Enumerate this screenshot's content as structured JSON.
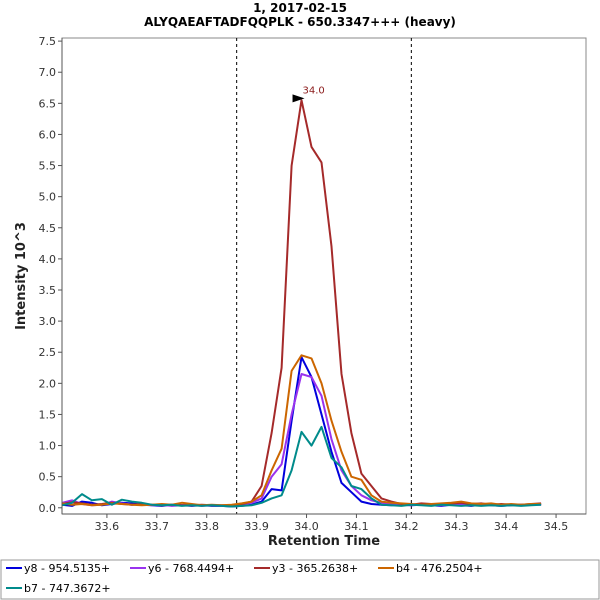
{
  "chart_data": {
    "type": "line",
    "title": "1, 2017-02-15",
    "subtitle": "ALYQAEAFTADFQQPLK - 650.3347+++ (heavy)",
    "xlabel": "Retention Time",
    "ylabel": "Intensity 10^3",
    "xlim": [
      33.51,
      34.56
    ],
    "ylim": [
      -0.1,
      7.55
    ],
    "x_ticks": [
      "33.6",
      "33.7",
      "33.8",
      "33.9",
      "34.0",
      "34.1",
      "34.2",
      "34.3",
      "34.4",
      "34.5"
    ],
    "y_ticks": [
      "0.0",
      "0.5",
      "1.0",
      "1.5",
      "2.0",
      "2.5",
      "3.0",
      "3.5",
      "4.0",
      "4.5",
      "5.0",
      "5.5",
      "6.0",
      "6.5",
      "7.0",
      "7.5"
    ],
    "integration_bounds": [
      33.86,
      34.21
    ],
    "peak_annotation": {
      "x": 34.0,
      "y": 6.58,
      "label": "34.0",
      "color": "#8b1a1a"
    },
    "legend_position": "bottom",
    "grid": false,
    "x": [
      33.51,
      33.53,
      33.55,
      33.57,
      33.59,
      33.61,
      33.63,
      33.65,
      33.67,
      33.69,
      33.71,
      33.73,
      33.75,
      33.77,
      33.79,
      33.81,
      33.83,
      33.85,
      33.87,
      33.89,
      33.91,
      33.93,
      33.95,
      33.97,
      33.99,
      34.01,
      34.03,
      34.05,
      34.07,
      34.09,
      34.11,
      34.13,
      34.15,
      34.17,
      34.19,
      34.21,
      34.23,
      34.25,
      34.27,
      34.29,
      34.31,
      34.33,
      34.35,
      34.37,
      34.39,
      34.41,
      34.43,
      34.45,
      34.47
    ],
    "series": [
      {
        "name": "y8 - 954.5135+",
        "color": "#0000dd",
        "values": [
          0.05,
          0.03,
          0.1,
          0.08,
          0.04,
          0.06,
          0.08,
          0.07,
          0.05,
          0.04,
          0.03,
          0.05,
          0.04,
          0.03,
          0.04,
          0.03,
          0.03,
          0.02,
          0.03,
          0.05,
          0.1,
          0.3,
          0.28,
          1.4,
          2.42,
          2.1,
          1.5,
          0.9,
          0.4,
          0.25,
          0.1,
          0.06,
          0.05,
          0.04,
          0.05,
          0.04,
          0.05,
          0.04,
          0.03,
          0.05,
          0.04,
          0.03,
          0.05,
          0.04,
          0.03,
          0.04,
          0.05,
          0.05,
          0.06
        ]
      },
      {
        "name": "y6 - 768.4494+",
        "color": "#9933ee",
        "values": [
          0.08,
          0.12,
          0.06,
          0.04,
          0.05,
          0.1,
          0.07,
          0.05,
          0.06,
          0.04,
          0.05,
          0.03,
          0.04,
          0.05,
          0.03,
          0.04,
          0.03,
          0.04,
          0.05,
          0.08,
          0.15,
          0.5,
          0.7,
          1.5,
          2.15,
          2.1,
          1.8,
          1.1,
          0.6,
          0.35,
          0.2,
          0.12,
          0.08,
          0.06,
          0.05,
          0.04,
          0.06,
          0.05,
          0.04,
          0.05,
          0.06,
          0.05,
          0.04,
          0.05,
          0.04,
          0.05,
          0.04,
          0.05,
          0.05
        ]
      },
      {
        "name": "y3 - 365.2638+",
        "color": "#a52a2a",
        "values": [
          0.06,
          0.09,
          0.07,
          0.05,
          0.06,
          0.08,
          0.06,
          0.05,
          0.06,
          0.05,
          0.04,
          0.05,
          0.04,
          0.04,
          0.05,
          0.04,
          0.04,
          0.04,
          0.06,
          0.1,
          0.35,
          1.2,
          2.25,
          5.5,
          6.55,
          5.8,
          5.55,
          4.2,
          2.15,
          1.2,
          0.55,
          0.35,
          0.15,
          0.1,
          0.06,
          0.05,
          0.07,
          0.06,
          0.05,
          0.07,
          0.08,
          0.06,
          0.07,
          0.05,
          0.06,
          0.05,
          0.05,
          0.06,
          0.07
        ]
      },
      {
        "name": "b4 - 476.2504+",
        "color": "#cc6600",
        "values": [
          0.07,
          0.05,
          0.06,
          0.04,
          0.05,
          0.07,
          0.06,
          0.05,
          0.04,
          0.05,
          0.06,
          0.05,
          0.08,
          0.06,
          0.04,
          0.05,
          0.04,
          0.05,
          0.07,
          0.1,
          0.2,
          0.6,
          0.95,
          2.2,
          2.45,
          2.4,
          2.0,
          1.4,
          0.9,
          0.5,
          0.45,
          0.2,
          0.1,
          0.08,
          0.07,
          0.06,
          0.05,
          0.06,
          0.07,
          0.08,
          0.1,
          0.07,
          0.06,
          0.07,
          0.05,
          0.06,
          0.05,
          0.06,
          0.06
        ]
      },
      {
        "name": "b7 - 747.3672+",
        "color": "#008b8b",
        "values": [
          0.04,
          0.08,
          0.22,
          0.12,
          0.14,
          0.05,
          0.13,
          0.1,
          0.08,
          0.05,
          0.04,
          0.05,
          0.03,
          0.04,
          0.03,
          0.04,
          0.03,
          0.02,
          0.03,
          0.04,
          0.08,
          0.15,
          0.2,
          0.6,
          1.22,
          1.0,
          1.3,
          0.8,
          0.65,
          0.35,
          0.3,
          0.15,
          0.05,
          0.04,
          0.03,
          0.05,
          0.04,
          0.03,
          0.05,
          0.04,
          0.03,
          0.04,
          0.03,
          0.04,
          0.03,
          0.04,
          0.03,
          0.04,
          0.05
        ]
      }
    ]
  }
}
